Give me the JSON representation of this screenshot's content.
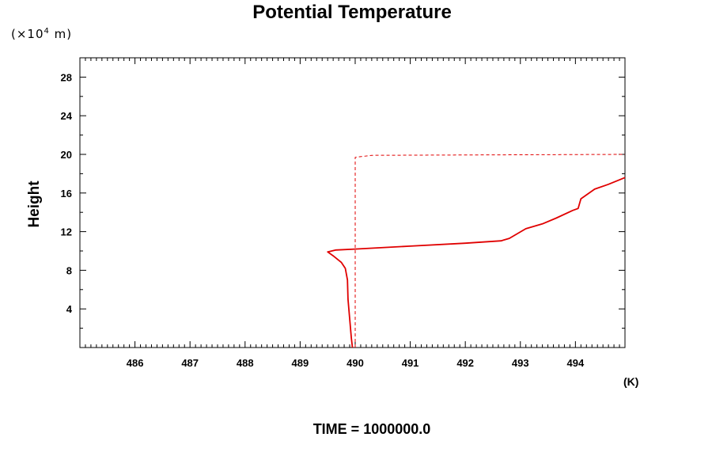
{
  "chart_data": {
    "type": "line",
    "title": "Potential Temperature",
    "units_prefix": "(×10",
    "units_exp": "4",
    "units_suffix": " m)",
    "ylabel": "Height",
    "xunit": "(K)",
    "footer": "TIME = 1000000.0",
    "xlim": [
      485.0,
      494.9
    ],
    "ylim": [
      0,
      30
    ],
    "grid": false,
    "x_ticks": [
      486,
      487,
      488,
      489,
      490,
      491,
      492,
      493,
      494
    ],
    "x_tick_labels": [
      "486",
      "487",
      "488",
      "489",
      "490",
      "491",
      "492",
      "493",
      "494"
    ],
    "y_ticks": [
      4,
      8,
      12,
      16,
      20,
      24,
      28
    ],
    "y_tick_labels": [
      "4",
      "8",
      "12",
      "16",
      "20",
      "24",
      "28"
    ],
    "series": [
      {
        "style": "solid",
        "color": "#e00000",
        "points": [
          [
            489.95,
            0.0
          ],
          [
            489.93,
            1.0
          ],
          [
            489.9,
            3.0
          ],
          [
            489.87,
            5.0
          ],
          [
            489.86,
            7.0
          ],
          [
            489.82,
            8.2
          ],
          [
            489.75,
            8.8
          ],
          [
            489.6,
            9.5
          ],
          [
            489.5,
            9.9
          ],
          [
            489.65,
            10.1
          ],
          [
            490.0,
            10.2
          ],
          [
            491.0,
            10.5
          ],
          [
            492.0,
            10.8
          ],
          [
            492.65,
            11.05
          ],
          [
            492.8,
            11.3
          ],
          [
            493.1,
            12.3
          ],
          [
            493.4,
            12.8
          ],
          [
            493.65,
            13.4
          ],
          [
            493.95,
            14.2
          ],
          [
            494.05,
            14.4
          ],
          [
            494.1,
            15.4
          ],
          [
            494.35,
            16.4
          ],
          [
            494.6,
            16.9
          ],
          [
            494.9,
            17.6
          ]
        ]
      },
      {
        "style": "dashed",
        "color": "#e00000",
        "points": [
          [
            490.0,
            0.0
          ],
          [
            490.0,
            19.7
          ],
          [
            490.3,
            19.9
          ],
          [
            494.9,
            20.0
          ]
        ]
      }
    ]
  }
}
